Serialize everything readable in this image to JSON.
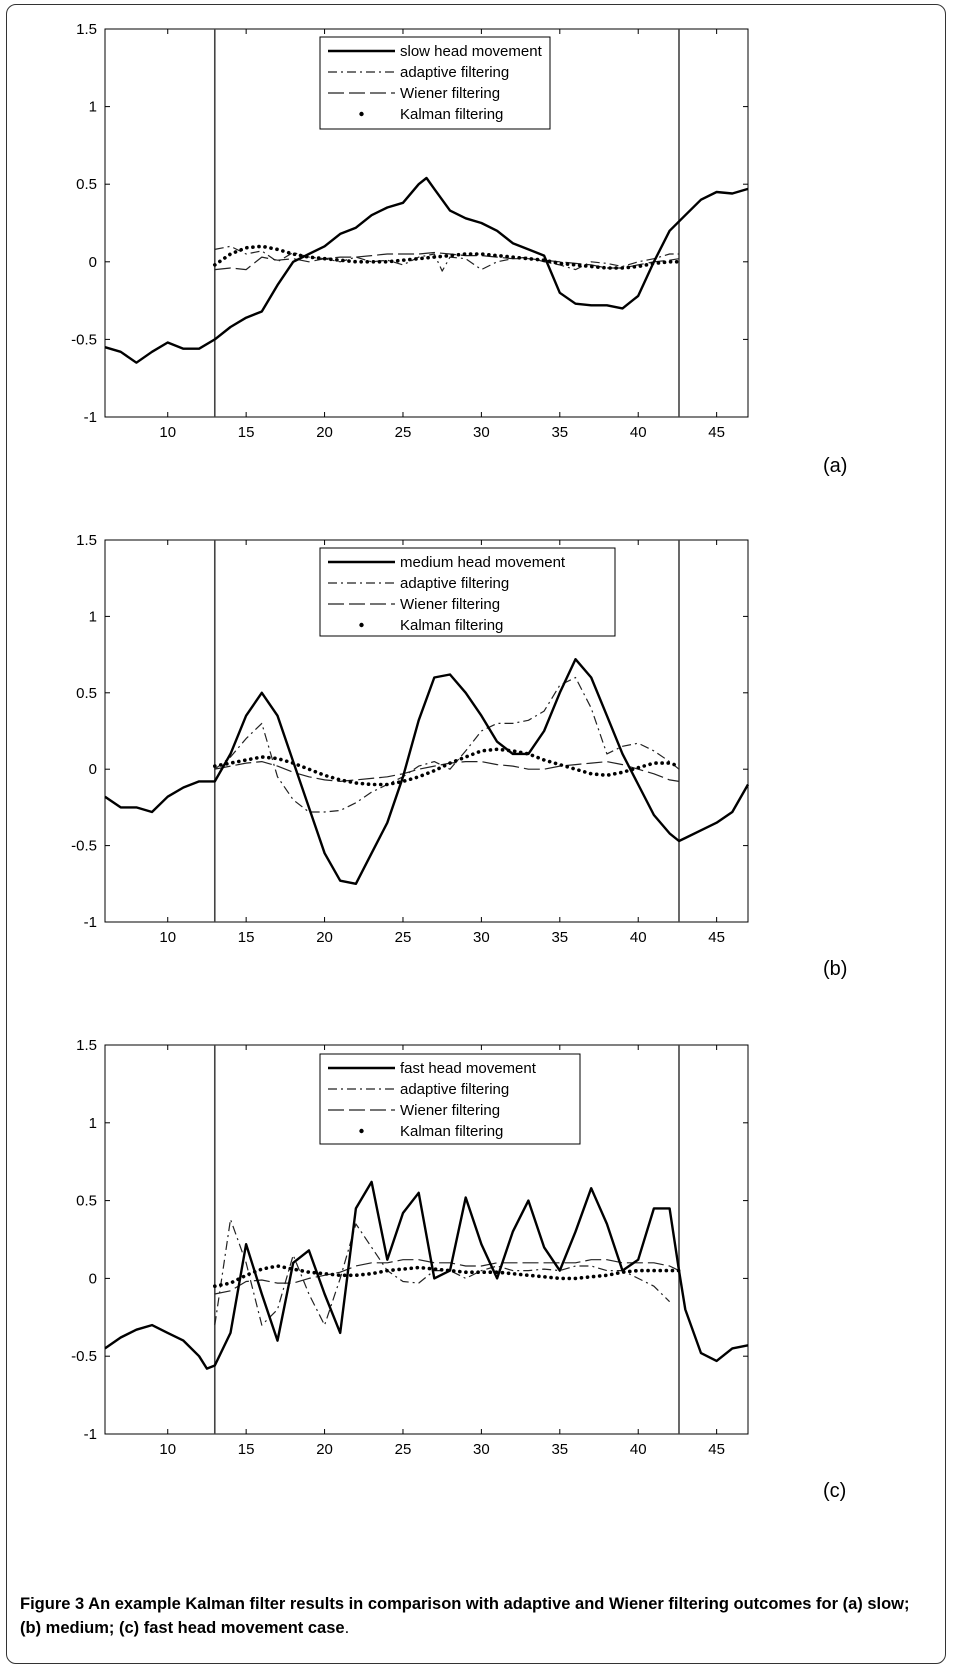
{
  "caption": {
    "label": "Figure 3",
    "text_bold": " An example Kalman filter results in comparison with adaptive and Wiener filtering outcomes for (a) slow; (b) medium; (c) fast head movement case",
    "text_end": "."
  },
  "chart_data": [
    {
      "type": "line",
      "panel_label": "(a)",
      "xlim": [
        6,
        47
      ],
      "ylim": [
        -1,
        1.5
      ],
      "xticks": [
        10,
        15,
        20,
        25,
        30,
        35,
        40,
        45
      ],
      "yticks": [
        -1,
        -0.5,
        0,
        0.5,
        1,
        1.5
      ],
      "vlines": [
        13,
        42.6
      ],
      "series": [
        {
          "name": "slow head movement",
          "style": "solid",
          "x": [
            6,
            7,
            8,
            9,
            10,
            11,
            12,
            13,
            14,
            15,
            16,
            17,
            18,
            19,
            20,
            21,
            22,
            23,
            24,
            25,
            26,
            26.5,
            27,
            28,
            29,
            30,
            31,
            32,
            33,
            34,
            35,
            36,
            37,
            38,
            39,
            40,
            41,
            42,
            43,
            44,
            45,
            46,
            47
          ],
          "y": [
            -0.55,
            -0.58,
            -0.65,
            -0.58,
            -0.52,
            -0.56,
            -0.56,
            -0.5,
            -0.42,
            -0.36,
            -0.32,
            -0.15,
            0.0,
            0.05,
            0.1,
            0.18,
            0.22,
            0.3,
            0.35,
            0.38,
            0.5,
            0.54,
            0.47,
            0.33,
            0.28,
            0.25,
            0.2,
            0.12,
            0.08,
            0.04,
            -0.2,
            -0.27,
            -0.28,
            -0.28,
            -0.3,
            -0.22,
            0.0,
            0.2,
            0.3,
            0.4,
            0.45,
            0.44,
            0.47
          ]
        },
        {
          "name": "adaptive filtering",
          "style": "dashdot",
          "x": [
            13,
            14,
            15,
            16,
            17,
            18,
            19,
            20,
            21,
            22,
            23,
            24,
            25,
            26,
            27,
            27.5,
            28,
            29,
            30,
            31,
            32,
            33,
            34,
            35,
            36,
            37,
            38,
            39,
            40,
            41,
            42,
            42.6
          ],
          "y": [
            0.08,
            0.1,
            0.05,
            0.07,
            0.0,
            0.06,
            0.03,
            0.02,
            0.0,
            0.03,
            0.0,
            0.01,
            -0.02,
            0.03,
            0.05,
            -0.06,
            0.03,
            0.02,
            -0.05,
            0.0,
            0.02,
            0.03,
            0.0,
            -0.02,
            -0.05,
            0.0,
            -0.01,
            -0.03,
            0.0,
            0.02,
            0.05,
            0.05
          ]
        },
        {
          "name": "Wiener filtering",
          "style": "longdash",
          "x": [
            13,
            14,
            15,
            16,
            17,
            18,
            19,
            20,
            21,
            22,
            23,
            24,
            25,
            26,
            27,
            28,
            29,
            30,
            31,
            32,
            33,
            34,
            35,
            36,
            37,
            38,
            39,
            40,
            41,
            42,
            42.6
          ],
          "y": [
            -0.05,
            -0.04,
            -0.05,
            0.03,
            0.01,
            0.02,
            0.0,
            0.02,
            0.03,
            0.03,
            0.04,
            0.05,
            0.05,
            0.05,
            0.06,
            0.05,
            0.04,
            0.04,
            0.03,
            0.02,
            0.02,
            0.01,
            0.0,
            -0.01,
            -0.02,
            -0.04,
            -0.04,
            -0.02,
            0.0,
            0.01,
            0.02
          ]
        },
        {
          "name": "Kalman filtering",
          "style": "dots",
          "x": [
            13,
            14,
            15,
            16,
            17,
            18,
            19,
            20,
            21,
            22,
            23,
            24,
            25,
            26,
            27,
            28,
            29,
            30,
            31,
            32,
            33,
            34,
            35,
            36,
            37,
            38,
            39,
            40,
            41,
            42,
            42.6
          ],
          "y": [
            -0.02,
            0.05,
            0.09,
            0.1,
            0.08,
            0.05,
            0.03,
            0.02,
            0.01,
            0.0,
            0.0,
            0.0,
            0.01,
            0.02,
            0.03,
            0.04,
            0.05,
            0.05,
            0.04,
            0.03,
            0.02,
            0.01,
            -0.01,
            -0.02,
            -0.03,
            -0.04,
            -0.04,
            -0.03,
            -0.01,
            0.0,
            0.0
          ]
        }
      ]
    },
    {
      "type": "line",
      "panel_label": "(b)",
      "xlim": [
        6,
        47
      ],
      "ylim": [
        -1,
        1.5
      ],
      "xticks": [
        10,
        15,
        20,
        25,
        30,
        35,
        40,
        45
      ],
      "yticks": [
        -1,
        -0.5,
        0,
        0.5,
        1,
        1.5
      ],
      "vlines": [
        13,
        42.6
      ],
      "series": [
        {
          "name": "medium head movement",
          "style": "solid",
          "x": [
            6,
            7,
            8,
            9,
            10,
            11,
            12,
            13,
            14,
            15,
            16,
            17,
            18,
            19,
            20,
            21,
            22,
            23,
            24,
            25,
            26,
            27,
            28,
            29,
            30,
            31,
            32,
            33,
            34,
            35,
            36,
            37,
            38,
            39,
            40,
            41,
            42,
            42.6,
            43,
            44,
            45,
            46,
            47
          ],
          "y": [
            -0.18,
            -0.25,
            -0.25,
            -0.28,
            -0.18,
            -0.12,
            -0.08,
            -0.08,
            0.1,
            0.35,
            0.5,
            0.35,
            0.05,
            -0.25,
            -0.55,
            -0.73,
            -0.75,
            -0.55,
            -0.35,
            -0.05,
            0.32,
            0.6,
            0.62,
            0.5,
            0.35,
            0.18,
            0.1,
            0.1,
            0.25,
            0.5,
            0.72,
            0.6,
            0.35,
            0.1,
            -0.1,
            -0.3,
            -0.42,
            -0.47,
            -0.45,
            -0.4,
            -0.35,
            -0.28,
            -0.1
          ]
        },
        {
          "name": "adaptive filtering",
          "style": "dashdot",
          "x": [
            13,
            14,
            15,
            16,
            17,
            18,
            19,
            20,
            21,
            22,
            23,
            24,
            25,
            26,
            27,
            28,
            29,
            30,
            31,
            32,
            33,
            34,
            35,
            36,
            37,
            38,
            39,
            40,
            41,
            42,
            42.6
          ],
          "y": [
            0.0,
            0.08,
            0.2,
            0.3,
            -0.05,
            -0.2,
            -0.28,
            -0.28,
            -0.27,
            -0.22,
            -0.15,
            -0.1,
            -0.05,
            0.02,
            0.05,
            0.0,
            0.12,
            0.25,
            0.3,
            0.3,
            0.32,
            0.38,
            0.55,
            0.6,
            0.4,
            0.1,
            0.15,
            0.17,
            0.12,
            0.05,
            0.0
          ]
        },
        {
          "name": "Wiener filtering",
          "style": "longdash",
          "x": [
            13,
            14,
            15,
            16,
            17,
            18,
            19,
            20,
            21,
            22,
            23,
            24,
            25,
            26,
            27,
            28,
            29,
            30,
            31,
            32,
            33,
            34,
            35,
            36,
            37,
            38,
            39,
            40,
            41,
            42,
            42.6
          ],
          "y": [
            0.0,
            0.02,
            0.04,
            0.05,
            0.02,
            -0.02,
            -0.05,
            -0.07,
            -0.08,
            -0.07,
            -0.06,
            -0.05,
            -0.03,
            0.0,
            0.02,
            0.04,
            0.05,
            0.05,
            0.03,
            0.02,
            0.0,
            0.0,
            0.02,
            0.03,
            0.04,
            0.05,
            0.03,
            0.0,
            -0.03,
            -0.07,
            -0.08
          ]
        },
        {
          "name": "Kalman filtering",
          "style": "dots",
          "x": [
            13,
            14,
            15,
            16,
            17,
            18,
            19,
            20,
            21,
            22,
            23,
            24,
            25,
            26,
            27,
            28,
            29,
            30,
            31,
            32,
            33,
            34,
            35,
            36,
            37,
            38,
            39,
            40,
            41,
            42,
            42.6
          ],
          "y": [
            0.02,
            0.04,
            0.06,
            0.08,
            0.07,
            0.04,
            0.0,
            -0.04,
            -0.07,
            -0.09,
            -0.1,
            -0.1,
            -0.08,
            -0.05,
            -0.01,
            0.04,
            0.08,
            0.12,
            0.13,
            0.12,
            0.1,
            0.06,
            0.03,
            0.0,
            -0.03,
            -0.04,
            -0.02,
            0.01,
            0.04,
            0.04,
            0.02
          ]
        }
      ]
    },
    {
      "type": "line",
      "panel_label": "(c)",
      "xlim": [
        6,
        47
      ],
      "ylim": [
        -1,
        1.5
      ],
      "xticks": [
        10,
        15,
        20,
        25,
        30,
        35,
        40,
        45
      ],
      "yticks": [
        -1,
        -0.5,
        0,
        0.5,
        1,
        1.5
      ],
      "vlines": [
        13,
        42.6
      ],
      "series": [
        {
          "name": "fast head movement",
          "style": "solid",
          "x": [
            6,
            7,
            8,
            9,
            10,
            11,
            12,
            12.5,
            13,
            14,
            15,
            16,
            17,
            18,
            19,
            20,
            21,
            22,
            23,
            24,
            25,
            26,
            27,
            28,
            29,
            30,
            31,
            32,
            33,
            34,
            35,
            36,
            37,
            38,
            39,
            40,
            41,
            42,
            42.6,
            43,
            44,
            45,
            46,
            47
          ],
          "y": [
            -0.45,
            -0.38,
            -0.33,
            -0.3,
            -0.35,
            -0.4,
            -0.5,
            -0.58,
            -0.56,
            -0.35,
            0.22,
            -0.1,
            -0.4,
            0.1,
            0.18,
            -0.1,
            -0.35,
            0.45,
            0.62,
            0.12,
            0.42,
            0.55,
            0.0,
            0.05,
            0.52,
            0.22,
            0.0,
            0.3,
            0.5,
            0.2,
            0.05,
            0.3,
            0.58,
            0.35,
            0.05,
            0.12,
            0.45,
            0.45,
            0.05,
            -0.2,
            -0.48,
            -0.53,
            -0.45,
            -0.43
          ]
        },
        {
          "name": "adaptive filtering",
          "style": "dashdot",
          "x": [
            13,
            14,
            15,
            16,
            17,
            18,
            19,
            20,
            21,
            22,
            23,
            24,
            25,
            26,
            27,
            28,
            29,
            30,
            31,
            32,
            33,
            34,
            35,
            36,
            37,
            38,
            39,
            40,
            41,
            42
          ],
          "y": [
            -0.3,
            0.38,
            0.1,
            -0.3,
            -0.2,
            0.15,
            -0.1,
            -0.3,
            0.0,
            0.35,
            0.2,
            0.05,
            -0.02,
            -0.03,
            0.05,
            0.05,
            0.0,
            0.05,
            0.08,
            0.05,
            0.05,
            0.06,
            0.05,
            0.08,
            0.08,
            0.05,
            0.05,
            0.0,
            -0.05,
            -0.15
          ]
        },
        {
          "name": "Wiener filtering",
          "style": "longdash",
          "x": [
            13,
            14,
            15,
            16,
            17,
            18,
            19,
            20,
            21,
            22,
            23,
            24,
            25,
            26,
            27,
            28,
            29,
            30,
            31,
            32,
            33,
            34,
            35,
            36,
            37,
            38,
            39,
            40,
            41,
            42,
            42.6
          ],
          "y": [
            -0.1,
            -0.08,
            -0.02,
            -0.01,
            -0.03,
            -0.03,
            0.0,
            0.02,
            0.04,
            0.08,
            0.1,
            0.1,
            0.12,
            0.12,
            0.1,
            0.1,
            0.08,
            0.08,
            0.1,
            0.1,
            0.1,
            0.1,
            0.1,
            0.1,
            0.12,
            0.12,
            0.1,
            0.1,
            0.1,
            0.08,
            0.05
          ]
        },
        {
          "name": "Kalman filtering",
          "style": "dots",
          "x": [
            13,
            14,
            15,
            16,
            17,
            18,
            19,
            20,
            21,
            22,
            23,
            24,
            25,
            26,
            27,
            28,
            29,
            30,
            31,
            32,
            33,
            34,
            35,
            36,
            37,
            38,
            39,
            40,
            41,
            42,
            42.6
          ],
          "y": [
            -0.05,
            -0.03,
            0.02,
            0.06,
            0.08,
            0.06,
            0.04,
            0.03,
            0.02,
            0.02,
            0.03,
            0.05,
            0.06,
            0.07,
            0.06,
            0.05,
            0.04,
            0.04,
            0.04,
            0.03,
            0.02,
            0.01,
            0.0,
            0.0,
            0.01,
            0.02,
            0.04,
            0.05,
            0.05,
            0.05,
            0.05
          ]
        }
      ]
    }
  ]
}
